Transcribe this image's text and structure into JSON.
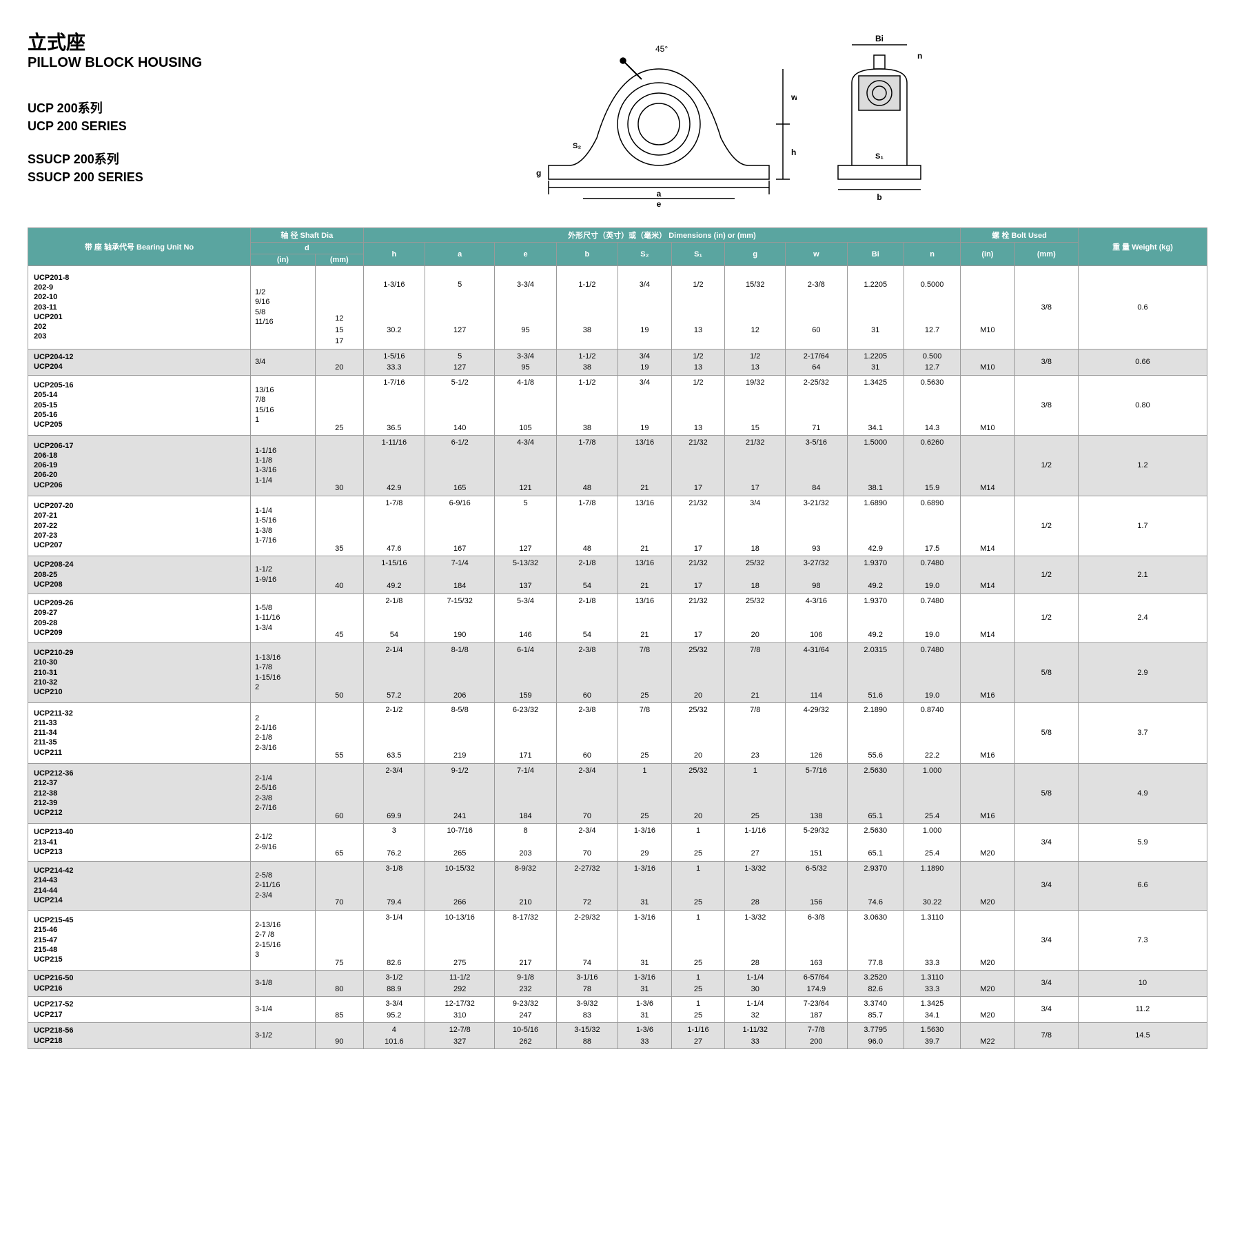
{
  "title": {
    "cn": "立式座",
    "en": "PILLOW BLOCK HOUSING",
    "series1_cn": "UCP 200系列",
    "series1_en": "UCP 200 SERIES",
    "series2_cn": "SSUCP 200系列",
    "series2_en": "SSUCP 200 SERIES"
  },
  "diagram": {
    "angle_label": "45°",
    "labels": [
      "a",
      "e",
      "b",
      "g",
      "h",
      "w",
      "S₂",
      "S₁",
      "Bi",
      "n"
    ]
  },
  "colors": {
    "header_bg": "#5aa5a0",
    "header_text": "#ffffff",
    "row_alt": "#e0e0e0",
    "border": "#999999"
  },
  "table": {
    "header_row1": {
      "unit": "带 座\n轴承代号\nBearing Unit\nNo",
      "shaft": "轴 径\nShaft Dia",
      "dims": "外形尺寸（英寸）或（毫米）\nDimensions (in) or (mm)",
      "bolt": "螺 栓\nBolt Used",
      "weight": "重 量\nWeight\n(kg)"
    },
    "header_row2": [
      "d"
    ],
    "header_row3": [
      "(in)",
      "(mm)",
      "h",
      "a",
      "e",
      "b",
      "S₂",
      "S₁",
      "g",
      "w",
      "Bi",
      "n",
      "(in)",
      "(mm)"
    ],
    "rows": [
      {
        "model": "UCP201-8\n    202-9\n    202-10\n    203-11\nUCP201\n    202\n    203",
        "in": "1/2\n9/16\n5/8\n11/16",
        "mm": "\n\n\n\n12\n15\n17",
        "h": "1-3/16\n\n\n\n30.2",
        "a": "5\n\n\n\n127",
        "e": "3-3/4\n\n\n\n95",
        "b": "1-1/2\n\n\n\n38",
        "s2": "3/4\n\n\n\n19",
        "s1": "1/2\n\n\n\n13",
        "g": "15/32\n\n\n\n12",
        "w": "2-3/8\n\n\n\n60",
        "bi": "1.2205\n\n\n\n31",
        "n": "0.5000\n\n\n\n12.7",
        "bolt_in": "\n\n\n\nM10",
        "bolt_mm": "3/8",
        "weight": "0.6"
      },
      {
        "model": "UCP204-12\nUCP204",
        "in": "3/4",
        "mm": "\n20",
        "h": "1-5/16\n33.3",
        "a": "5\n127",
        "e": "3-3/4\n95",
        "b": "1-1/2\n38",
        "s2": "3/4\n19",
        "s1": "1/2\n13",
        "g": "1/2\n13",
        "w": "2-17/64\n64",
        "bi": "1.2205\n31",
        "n": "0.500\n12.7",
        "bolt_in": "\nM10",
        "bolt_mm": "3/8",
        "weight": "0.66"
      },
      {
        "model": "UCP205-16\n    205-14\n    205-15\n    205-16\nUCP205",
        "in": "13/16\n7/8\n15/16\n1",
        "mm": "\n\n\n\n25",
        "h": "1-7/16\n\n\n\n36.5",
        "a": "5-1/2\n\n\n\n140",
        "e": "4-1/8\n\n\n\n105",
        "b": "1-1/2\n\n\n\n38",
        "s2": "3/4\n\n\n\n19",
        "s1": "1/2\n\n\n\n13",
        "g": "19/32\n\n\n\n15",
        "w": "2-25/32\n\n\n\n71",
        "bi": "1.3425\n\n\n\n34.1",
        "n": "0.5630\n\n\n\n14.3",
        "bolt_in": "\n\n\n\nM10",
        "bolt_mm": "3/8",
        "weight": "0.80"
      },
      {
        "model": "UCP206-17\n    206-18\n    206-19\n    206-20\nUCP206",
        "in": "1-1/16\n1-1/8\n1-3/16\n1-1/4",
        "mm": "\n\n\n\n30",
        "h": "1-11/16\n\n\n\n42.9",
        "a": "6-1/2\n\n\n\n165",
        "e": "4-3/4\n\n\n\n121",
        "b": "1-7/8\n\n\n\n48",
        "s2": "13/16\n\n\n\n21",
        "s1": "21/32\n\n\n\n17",
        "g": "21/32\n\n\n\n17",
        "w": "3-5/16\n\n\n\n84",
        "bi": "1.5000\n\n\n\n38.1",
        "n": "0.6260\n\n\n\n15.9",
        "bolt_in": "\n\n\n\nM14",
        "bolt_mm": "1/2",
        "weight": "1.2"
      },
      {
        "model": "UCP207-20\n    207-21\n    207-22\n    207-23\nUCP207",
        "in": "1-1/4\n1-5/16\n1-3/8\n1-7/16",
        "mm": "\n\n\n\n35",
        "h": "1-7/8\n\n\n\n47.6",
        "a": "6-9/16\n\n\n\n167",
        "e": "5\n\n\n\n127",
        "b": "1-7/8\n\n\n\n48",
        "s2": "13/16\n\n\n\n21",
        "s1": "21/32\n\n\n\n17",
        "g": "3/4\n\n\n\n18",
        "w": "3-21/32\n\n\n\n93",
        "bi": "1.6890\n\n\n\n42.9",
        "n": "0.6890\n\n\n\n17.5",
        "bolt_in": "\n\n\n\nM14",
        "bolt_mm": "1/2",
        "weight": "1.7"
      },
      {
        "model": "UCP208-24\n    208-25\nUCP208",
        "in": "1-1/2\n1-9/16",
        "mm": "\n\n40",
        "h": "1-15/16\n\n49.2",
        "a": "7-1/4\n\n184",
        "e": "5-13/32\n\n137",
        "b": "2-1/8\n\n54",
        "s2": "13/16\n\n21",
        "s1": "21/32\n\n17",
        "g": "25/32\n\n18",
        "w": "3-27/32\n\n98",
        "bi": "1.9370\n\n49.2",
        "n": "0.7480\n\n19.0",
        "bolt_in": "\n\nM14",
        "bolt_mm": "1/2",
        "weight": "2.1"
      },
      {
        "model": "UCP209-26\n    209-27\n    209-28\nUCP209",
        "in": "1-5/8\n1-11/16\n1-3/4",
        "mm": "\n\n\n45",
        "h": "2-1/8\n\n\n54",
        "a": "7-15/32\n\n\n190",
        "e": "5-3/4\n\n\n146",
        "b": "2-1/8\n\n\n54",
        "s2": "13/16\n\n\n21",
        "s1": "21/32\n\n\n17",
        "g": "25/32\n\n\n20",
        "w": "4-3/16\n\n\n106",
        "bi": "1.9370\n\n\n49.2",
        "n": "0.7480\n\n\n19.0",
        "bolt_in": "\n\n\nM14",
        "bolt_mm": "1/2",
        "weight": "2.4"
      },
      {
        "model": "UCP210-29\n    210-30\n    210-31\n    210-32\nUCP210",
        "in": "1-13/16\n1-7/8\n1-15/16\n2",
        "mm": "\n\n\n\n50",
        "h": "2-1/4\n\n\n\n57.2",
        "a": "8-1/8\n\n\n\n206",
        "e": "6-1/4\n\n\n\n159",
        "b": "2-3/8\n\n\n\n60",
        "s2": "7/8\n\n\n\n25",
        "s1": "25/32\n\n\n\n20",
        "g": "7/8\n\n\n\n21",
        "w": "4-31/64\n\n\n\n114",
        "bi": "2.0315\n\n\n\n51.6",
        "n": "0.7480\n\n\n\n19.0",
        "bolt_in": "\n\n\n\nM16",
        "bolt_mm": "5/8",
        "weight": "2.9"
      },
      {
        "model": "UCP211-32\n    211-33\n    211-34\n    211-35\nUCP211",
        "in": "2\n2-1/16\n2-1/8\n2-3/16",
        "mm": "\n\n\n\n55",
        "h": "2-1/2\n\n\n\n63.5",
        "a": "8-5/8\n\n\n\n219",
        "e": "6-23/32\n\n\n\n171",
        "b": "2-3/8\n\n\n\n60",
        "s2": "7/8\n\n\n\n25",
        "s1": "25/32\n\n\n\n20",
        "g": "7/8\n\n\n\n23",
        "w": "4-29/32\n\n\n\n126",
        "bi": "2.1890\n\n\n\n55.6",
        "n": "0.8740\n\n\n\n22.2",
        "bolt_in": "\n\n\n\nM16",
        "bolt_mm": "5/8",
        "weight": "3.7"
      },
      {
        "model": "UCP212-36\n    212-37\n    212-38\n    212-39\nUCP212",
        "in": "2-1/4\n2-5/16\n2-3/8\n2-7/16",
        "mm": "\n\n\n\n60",
        "h": "2-3/4\n\n\n\n69.9",
        "a": "9-1/2\n\n\n\n241",
        "e": "7-1/4\n\n\n\n184",
        "b": "2-3/4\n\n\n\n70",
        "s2": "1\n\n\n\n25",
        "s1": "25/32\n\n\n\n20",
        "g": "1\n\n\n\n25",
        "w": "5-7/16\n\n\n\n138",
        "bi": "2.5630\n\n\n\n65.1",
        "n": "1.000\n\n\n\n25.4",
        "bolt_in": "\n\n\n\nM16",
        "bolt_mm": "5/8",
        "weight": "4.9"
      },
      {
        "model": "UCP213-40\n    213-41\nUCP213",
        "in": "2-1/2\n2-9/16",
        "mm": "\n\n65",
        "h": "3\n\n76.2",
        "a": "10-7/16\n\n265",
        "e": "8\n\n203",
        "b": "2-3/4\n\n70",
        "s2": "1-3/16\n\n29",
        "s1": "1\n\n25",
        "g": "1-1/16\n\n27",
        "w": "5-29/32\n\n151",
        "bi": "2.5630\n\n65.1",
        "n": "1.000\n\n25.4",
        "bolt_in": "\n\nM20",
        "bolt_mm": "3/4",
        "weight": "5.9"
      },
      {
        "model": "UCP214-42\n    214-43\n    214-44\nUCP214",
        "in": "2-5/8\n2-11/16\n2-3/4",
        "mm": "\n\n\n70",
        "h": "3-1/8\n\n\n79.4",
        "a": "10-15/32\n\n\n266",
        "e": "8-9/32\n\n\n210",
        "b": "2-27/32\n\n\n72",
        "s2": "1-3/16\n\n\n31",
        "s1": "1\n\n\n25",
        "g": "1-3/32\n\n\n28",
        "w": "6-5/32\n\n\n156",
        "bi": "2.9370\n\n\n74.6",
        "n": "1.1890\n\n\n30.22",
        "bolt_in": "\n\n\nM20",
        "bolt_mm": "3/4",
        "weight": "6.6"
      },
      {
        "model": "UCP215-45\n    215-46\n    215-47\n    215-48\nUCP215",
        "in": "2-13/16\n2-7 /8\n2-15/16\n3",
        "mm": "\n\n\n\n75",
        "h": "3-1/4\n\n\n\n82.6",
        "a": "10-13/16\n\n\n\n275",
        "e": "8-17/32\n\n\n\n217",
        "b": "2-29/32\n\n\n\n74",
        "s2": "1-3/16\n\n\n\n31",
        "s1": "1\n\n\n\n25",
        "g": "1-3/32\n\n\n\n28",
        "w": "6-3/8\n\n\n\n163",
        "bi": "3.0630\n\n\n\n77.8",
        "n": "1.3110\n\n\n\n33.3",
        "bolt_in": "\n\n\n\nM20",
        "bolt_mm": "3/4",
        "weight": "7.3"
      },
      {
        "model": "UCP216-50\nUCP216",
        "in": "3-1/8",
        "mm": "\n80",
        "h": "3-1/2\n88.9",
        "a": "11-1/2\n292",
        "e": "9-1/8\n232",
        "b": "3-1/16\n78",
        "s2": "1-3/16\n31",
        "s1": "1\n25",
        "g": "1-1/4\n30",
        "w": "6-57/64\n174.9",
        "bi": "3.2520\n82.6",
        "n": "1.3110\n33.3",
        "bolt_in": "\nM20",
        "bolt_mm": "3/4",
        "weight": "10"
      },
      {
        "model": "UCP217-52\nUCP217",
        "in": "3-1/4",
        "mm": "\n85",
        "h": "3-3/4\n95.2",
        "a": "12-17/32\n310",
        "e": "9-23/32\n247",
        "b": "3-9/32\n83",
        "s2": "1-3/6\n31",
        "s1": "1\n25",
        "g": "1-1/4\n32",
        "w": "7-23/64\n187",
        "bi": "3.3740\n85.7",
        "n": "1.3425\n34.1",
        "bolt_in": "\nM20",
        "bolt_mm": "3/4",
        "weight": "11.2"
      },
      {
        "model": "UCP218-56\nUCP218",
        "in": "3-1/2",
        "mm": "\n90",
        "h": "4\n101.6",
        "a": "12-7/8\n327",
        "e": "10-5/16\n262",
        "b": "3-15/32\n88",
        "s2": "1-3/6\n33",
        "s1": "1-1/16\n27",
        "g": "1-11/32\n33",
        "w": "7-7/8\n200",
        "bi": "3.7795\n96.0",
        "n": "1.5630\n39.7",
        "bolt_in": "\nM22",
        "bolt_mm": "7/8",
        "weight": "14.5"
      }
    ]
  }
}
